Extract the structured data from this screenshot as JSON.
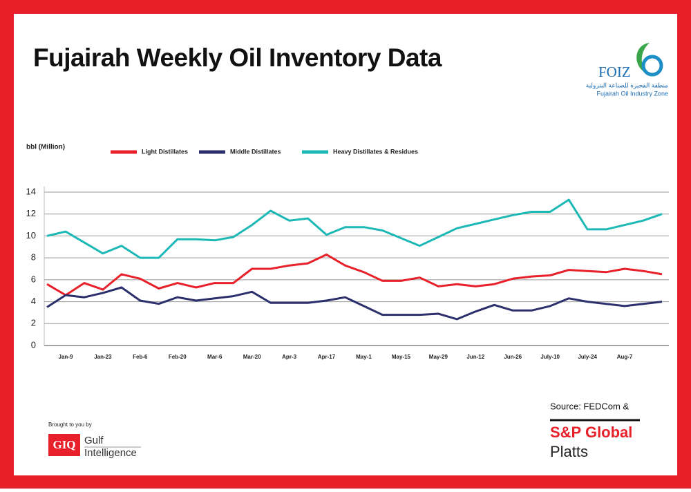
{
  "chart_data": {
    "type": "line",
    "title": "Fujairah Weekly Oil Inventory Data",
    "ylabel": "bbl (Million)",
    "categories": [
      null,
      "Jan-9",
      null,
      "Jan-23",
      null,
      "Feb-6",
      null,
      "Feb-20",
      null,
      "Mar-6",
      null,
      "Mar-20",
      null,
      "Apr-3",
      null,
      "Apr-17",
      null,
      "May-1",
      null,
      "May-15",
      null,
      "May-29",
      null,
      "Jun-12",
      null,
      "Jun-26",
      null,
      "July-10",
      null,
      "July-24",
      null,
      "Aug-7",
      null,
      null
    ],
    "series": [
      {
        "name": "Light Distillates",
        "color": "#e8202a",
        "values": [
          5.6,
          4.6,
          5.7,
          5.1,
          6.5,
          6.1,
          5.2,
          5.7,
          5.3,
          5.7,
          5.7,
          7.0,
          7.0,
          7.3,
          7.5,
          8.3,
          7.3,
          6.7,
          5.9,
          5.9,
          6.2,
          5.4,
          5.6,
          5.4,
          5.6,
          6.1,
          6.3,
          6.4,
          6.9,
          6.8,
          6.7,
          7.0,
          6.8,
          6.5
        ]
      },
      {
        "name": "Middle Distillates",
        "color": "#2b2f6b",
        "values": [
          3.5,
          4.6,
          4.4,
          4.8,
          5.3,
          4.1,
          3.8,
          4.4,
          4.1,
          4.3,
          4.5,
          4.9,
          3.9,
          3.9,
          3.9,
          4.1,
          4.4,
          3.6,
          2.8,
          2.8,
          2.8,
          2.9,
          2.4,
          3.1,
          3.7,
          3.2,
          3.2,
          3.6,
          4.3,
          4.0,
          3.8,
          3.6,
          3.8,
          4.0
        ]
      },
      {
        "name": "Heavy Distillates & Residues",
        "color": "#1bb8b6",
        "values": [
          10.0,
          10.4,
          9.4,
          8.4,
          9.1,
          8.0,
          8.0,
          9.7,
          9.7,
          9.6,
          9.9,
          11.0,
          12.3,
          11.4,
          11.6,
          10.1,
          10.8,
          10.8,
          10.5,
          9.8,
          9.1,
          9.9,
          10.7,
          11.1,
          11.5,
          11.9,
          12.2,
          12.2,
          13.3,
          10.6,
          10.6,
          11.0,
          11.4,
          12.0
        ]
      }
    ],
    "ylim": [
      0,
      14
    ],
    "yticks": [
      0,
      2,
      4,
      6,
      8,
      10,
      12,
      14
    ],
    "grid": true
  },
  "logo": {
    "name": "FOIZ",
    "arabic": "منطقة الفجيرة للصناعة البترولية",
    "subtitle": "Fujairah Oil Industry Zone"
  },
  "footer": {
    "brought": "Brought to you by",
    "giq": "GIQ",
    "gulf": "Gulf",
    "intelligence": "Intelligence",
    "source": "Source: FEDCom &",
    "sp": "S&P Global",
    "platts": "Platts"
  }
}
